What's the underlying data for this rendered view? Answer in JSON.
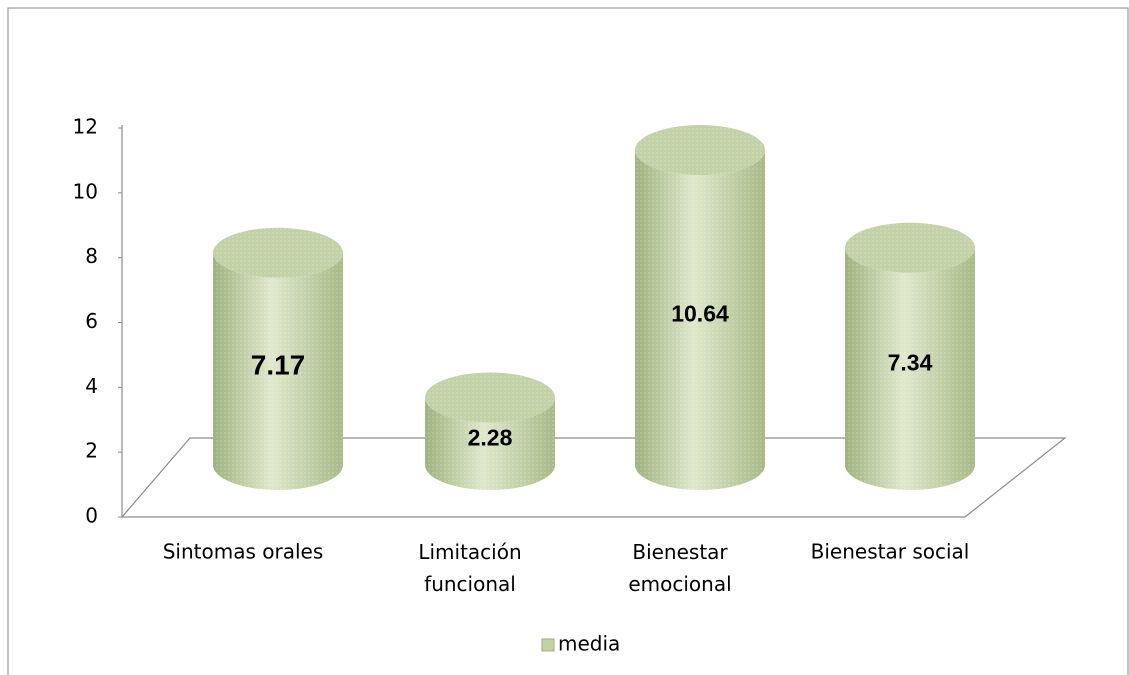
{
  "chart_data": {
    "type": "bar",
    "categories": [
      "Sintomas orales",
      "Limitación funcional",
      "Bienestar emocional",
      "Bienestar social"
    ],
    "series": [
      {
        "name": "media",
        "color": "#c3d1a6",
        "values": [
          7.17,
          2.28,
          10.64,
          7.34
        ]
      }
    ],
    "ylim": [
      0,
      12
    ],
    "yticks": [
      0,
      2,
      4,
      6,
      8,
      10,
      12
    ],
    "legend": "bottom"
  }
}
